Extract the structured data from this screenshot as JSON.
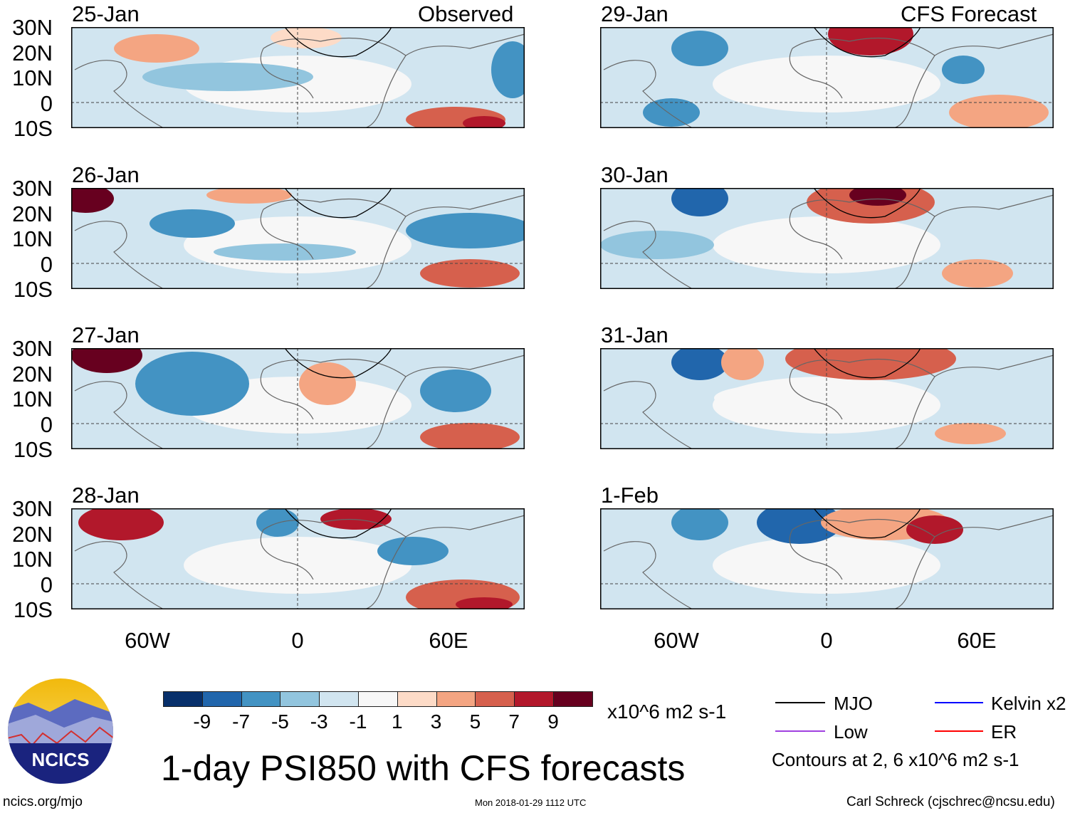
{
  "title": "1-day PSI850 with CFS forecasts",
  "left_header": "Observed",
  "right_header": "CFS Forecast",
  "panels": [
    {
      "date": "25-Jan",
      "column": "observed"
    },
    {
      "date": "26-Jan",
      "column": "observed"
    },
    {
      "date": "27-Jan",
      "column": "observed"
    },
    {
      "date": "28-Jan",
      "column": "observed"
    },
    {
      "date": "29-Jan",
      "column": "forecast"
    },
    {
      "date": "30-Jan",
      "column": "forecast"
    },
    {
      "date": "31-Jan",
      "column": "forecast"
    },
    {
      "date": "1-Feb",
      "column": "forecast"
    }
  ],
  "lat_labels": [
    "30N",
    "20N",
    "10N",
    "0",
    "10S"
  ],
  "lon_labels": [
    "60W",
    "0",
    "60E"
  ],
  "colorbar": {
    "labels": [
      "-9",
      "-7",
      "-5",
      "-3",
      "-1",
      "1",
      "3",
      "5",
      "7",
      "9"
    ],
    "colors": [
      "#08306b",
      "#2166ac",
      "#4393c3",
      "#92c5de",
      "#d1e5f0",
      "#f7f7f7",
      "#fddbc7",
      "#f4a582",
      "#d6604d",
      "#b2182b",
      "#67001f"
    ],
    "units": "x10^6 m2 s-1"
  },
  "legend": {
    "items": [
      {
        "label": "MJO",
        "color": "#000000"
      },
      {
        "label": "Kelvin x2",
        "color": "#0000ff"
      },
      {
        "label": "Low",
        "color": "#a040e0"
      },
      {
        "label": "ER",
        "color": "#ff0000"
      }
    ],
    "note": "Contours at 2, 6 x10^6 m2 s-1"
  },
  "logo": {
    "text": "NCICS"
  },
  "footer": {
    "left": "ncics.org/mjo",
    "center": "Mon 2018-01-29 1112 UTC",
    "right": "Carl Schreck (cjschrec@ncsu.edu)"
  }
}
